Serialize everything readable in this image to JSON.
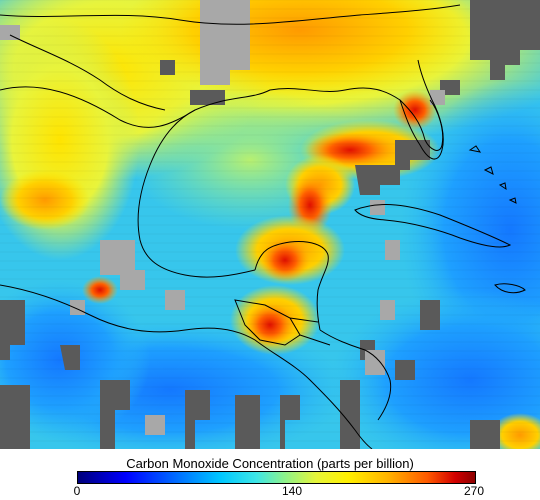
{
  "colorbar": {
    "title": "Carbon Monoxide Concentration (parts per billion)",
    "ticks": [
      {
        "label": "0",
        "value": 0
      },
      {
        "label": "140",
        "value": 140
      },
      {
        "label": "270",
        "value": 270
      }
    ],
    "range": [
      0,
      270
    ],
    "colors": {
      "low": "#00007a",
      "mid_low": "#00c8ff",
      "mid": "#e6f53a",
      "mid_high": "#ff5a00",
      "high": "#8c0000",
      "no_data_land": "#5a5a5a",
      "no_data_sea": "#a8a8a8"
    }
  },
  "map": {
    "outline_color": "#000000"
  }
}
